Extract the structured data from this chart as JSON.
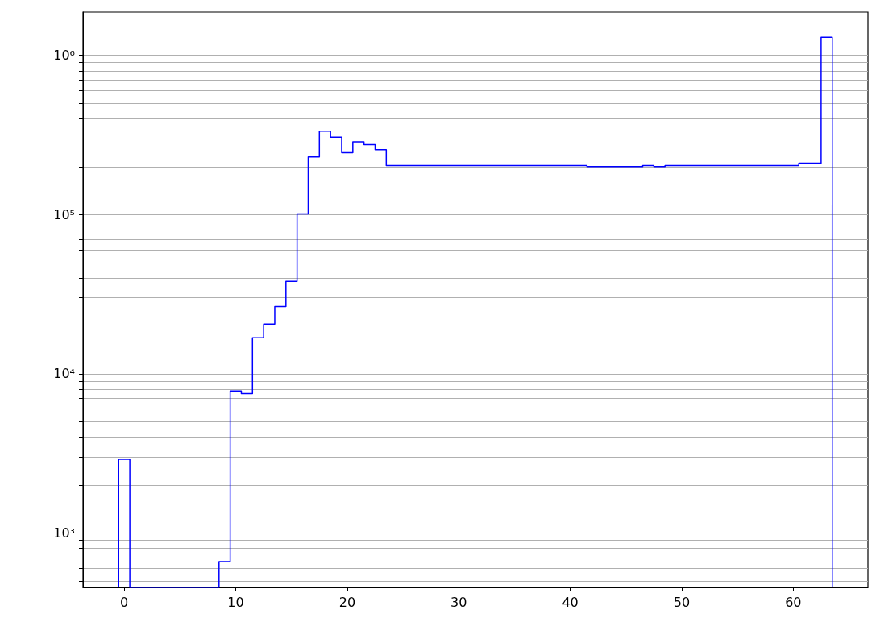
{
  "chart_data": {
    "type": "histogram",
    "bins": [
      -0.5,
      0.5,
      1.5,
      2.5,
      3.5,
      4.5,
      5.5,
      6.5,
      7.5,
      8.5,
      9.5,
      10.5,
      11.5,
      12.5,
      13.5,
      14.5,
      15.5,
      16.5,
      17.5,
      18.5,
      19.5,
      20.5,
      21.5,
      22.5,
      23.5,
      24.5,
      25.5,
      26.5,
      27.5,
      28.5,
      29.5,
      30.5,
      31.5,
      32.5,
      33.5,
      34.5,
      35.5,
      36.5,
      37.5,
      38.5,
      39.5,
      40.5,
      41.5,
      42.5,
      43.5,
      44.5,
      45.5,
      46.5,
      47.5,
      48.5,
      49.5,
      50.5,
      51.5,
      52.5,
      53.5,
      54.5,
      55.5,
      56.5,
      57.5,
      58.5,
      59.5,
      60.5,
      61.5,
      62.5,
      63.5
    ],
    "values": [
      2900,
      null,
      null,
      null,
      null,
      null,
      null,
      null,
      null,
      660,
      7800,
      7500,
      16800,
      20500,
      26400,
      38000,
      101000,
      230000,
      334000,
      306000,
      245000,
      286000,
      275000,
      256000,
      203000,
      203000,
      203000,
      203000,
      203000,
      203000,
      203000,
      203000,
      203000,
      203000,
      203000,
      203000,
      203000,
      203000,
      203000,
      203000,
      203000,
      203000,
      200000,
      200000,
      200000,
      200000,
      200000,
      203000,
      200000,
      203000,
      203000,
      203000,
      203000,
      203000,
      203000,
      203000,
      203000,
      203000,
      203000,
      203000,
      203000,
      210000,
      210000,
      1300000
    ],
    "color": "#0000ff",
    "log": "y",
    "grid": "y",
    "xlim": [
      -3.7,
      66.7
    ],
    "xticks": [
      0,
      10,
      20,
      30,
      40,
      50,
      60
    ],
    "ylim": [
      455,
      1870000
    ],
    "yticks": [
      {
        "value": 1000,
        "label": "10³"
      },
      {
        "value": 2000,
        "label": null
      },
      {
        "value": 3000,
        "label": null
      },
      {
        "value": 4000,
        "label": null
      },
      {
        "value": 5000,
        "label": null
      },
      {
        "value": 6000,
        "label": null
      },
      {
        "value": 7000,
        "label": null
      },
      {
        "value": 8000,
        "label": null
      },
      {
        "value": 9000,
        "label": null
      },
      {
        "value": 10000,
        "label": "10⁴"
      },
      {
        "value": 20000,
        "label": null
      },
      {
        "value": 30000,
        "label": null
      },
      {
        "value": 40000,
        "label": null
      },
      {
        "value": 50000,
        "label": null
      },
      {
        "value": 60000,
        "label": null
      },
      {
        "value": 70000,
        "label": null
      },
      {
        "value": 80000,
        "label": null
      },
      {
        "value": 90000,
        "label": null
      },
      {
        "value": 100000,
        "label": "10⁵"
      },
      {
        "value": 200000,
        "label": null
      },
      {
        "value": 300000,
        "label": null
      },
      {
        "value": 400000,
        "label": null
      },
      {
        "value": 500000,
        "label": null
      },
      {
        "value": 600000,
        "label": null
      },
      {
        "value": 700000,
        "label": null
      },
      {
        "value": 800000,
        "label": null
      },
      {
        "value": 900000,
        "label": null
      },
      {
        "value": 1000000,
        "label": "10⁶"
      },
      {
        "value": 500,
        "label": null
      },
      {
        "value": 600,
        "label": null
      },
      {
        "value": 700,
        "label": null
      },
      {
        "value": 800,
        "label": null
      },
      {
        "value": 900,
        "label": null
      }
    ]
  }
}
